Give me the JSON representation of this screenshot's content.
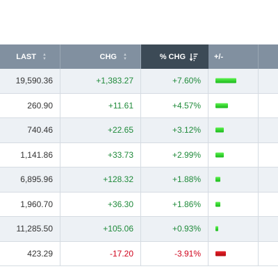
{
  "table": {
    "headers": {
      "last": "LAST",
      "chg": "CHG",
      "pct_chg": "% CHG",
      "bar": "+/-"
    },
    "rows": [
      {
        "last": "19,590.36",
        "chg": "+1,383.27",
        "pct": "+7.60%",
        "pct_value": 7.6,
        "direction": "up"
      },
      {
        "last": "260.90",
        "chg": "+11.61",
        "pct": "+4.57%",
        "pct_value": 4.57,
        "direction": "up"
      },
      {
        "last": "740.46",
        "chg": "+22.65",
        "pct": "+3.12%",
        "pct_value": 3.12,
        "direction": "up"
      },
      {
        "last": "1,141.86",
        "chg": "+33.73",
        "pct": "+2.99%",
        "pct_value": 2.99,
        "direction": "up"
      },
      {
        "last": "6,895.96",
        "chg": "+128.32",
        "pct": "+1.88%",
        "pct_value": 1.88,
        "direction": "up"
      },
      {
        "last": "1,960.70",
        "chg": "+36.30",
        "pct": "+1.86%",
        "pct_value": 1.86,
        "direction": "up"
      },
      {
        "last": "11,285.50",
        "chg": "+105.06",
        "pct": "+0.93%",
        "pct_value": 0.93,
        "direction": "up"
      },
      {
        "last": "423.29",
        "chg": "-17.20",
        "pct": "-3.91%",
        "pct_value": -3.91,
        "direction": "down"
      }
    ]
  },
  "colors": {
    "positive": "#1f8a3a",
    "negative": "#d0021b",
    "header_bg": "#8190a0",
    "header_active_bg": "#3c4a56"
  },
  "icons": {
    "sort": "sort-updown-icon",
    "sort_active": "sort-descending-icon"
  }
}
